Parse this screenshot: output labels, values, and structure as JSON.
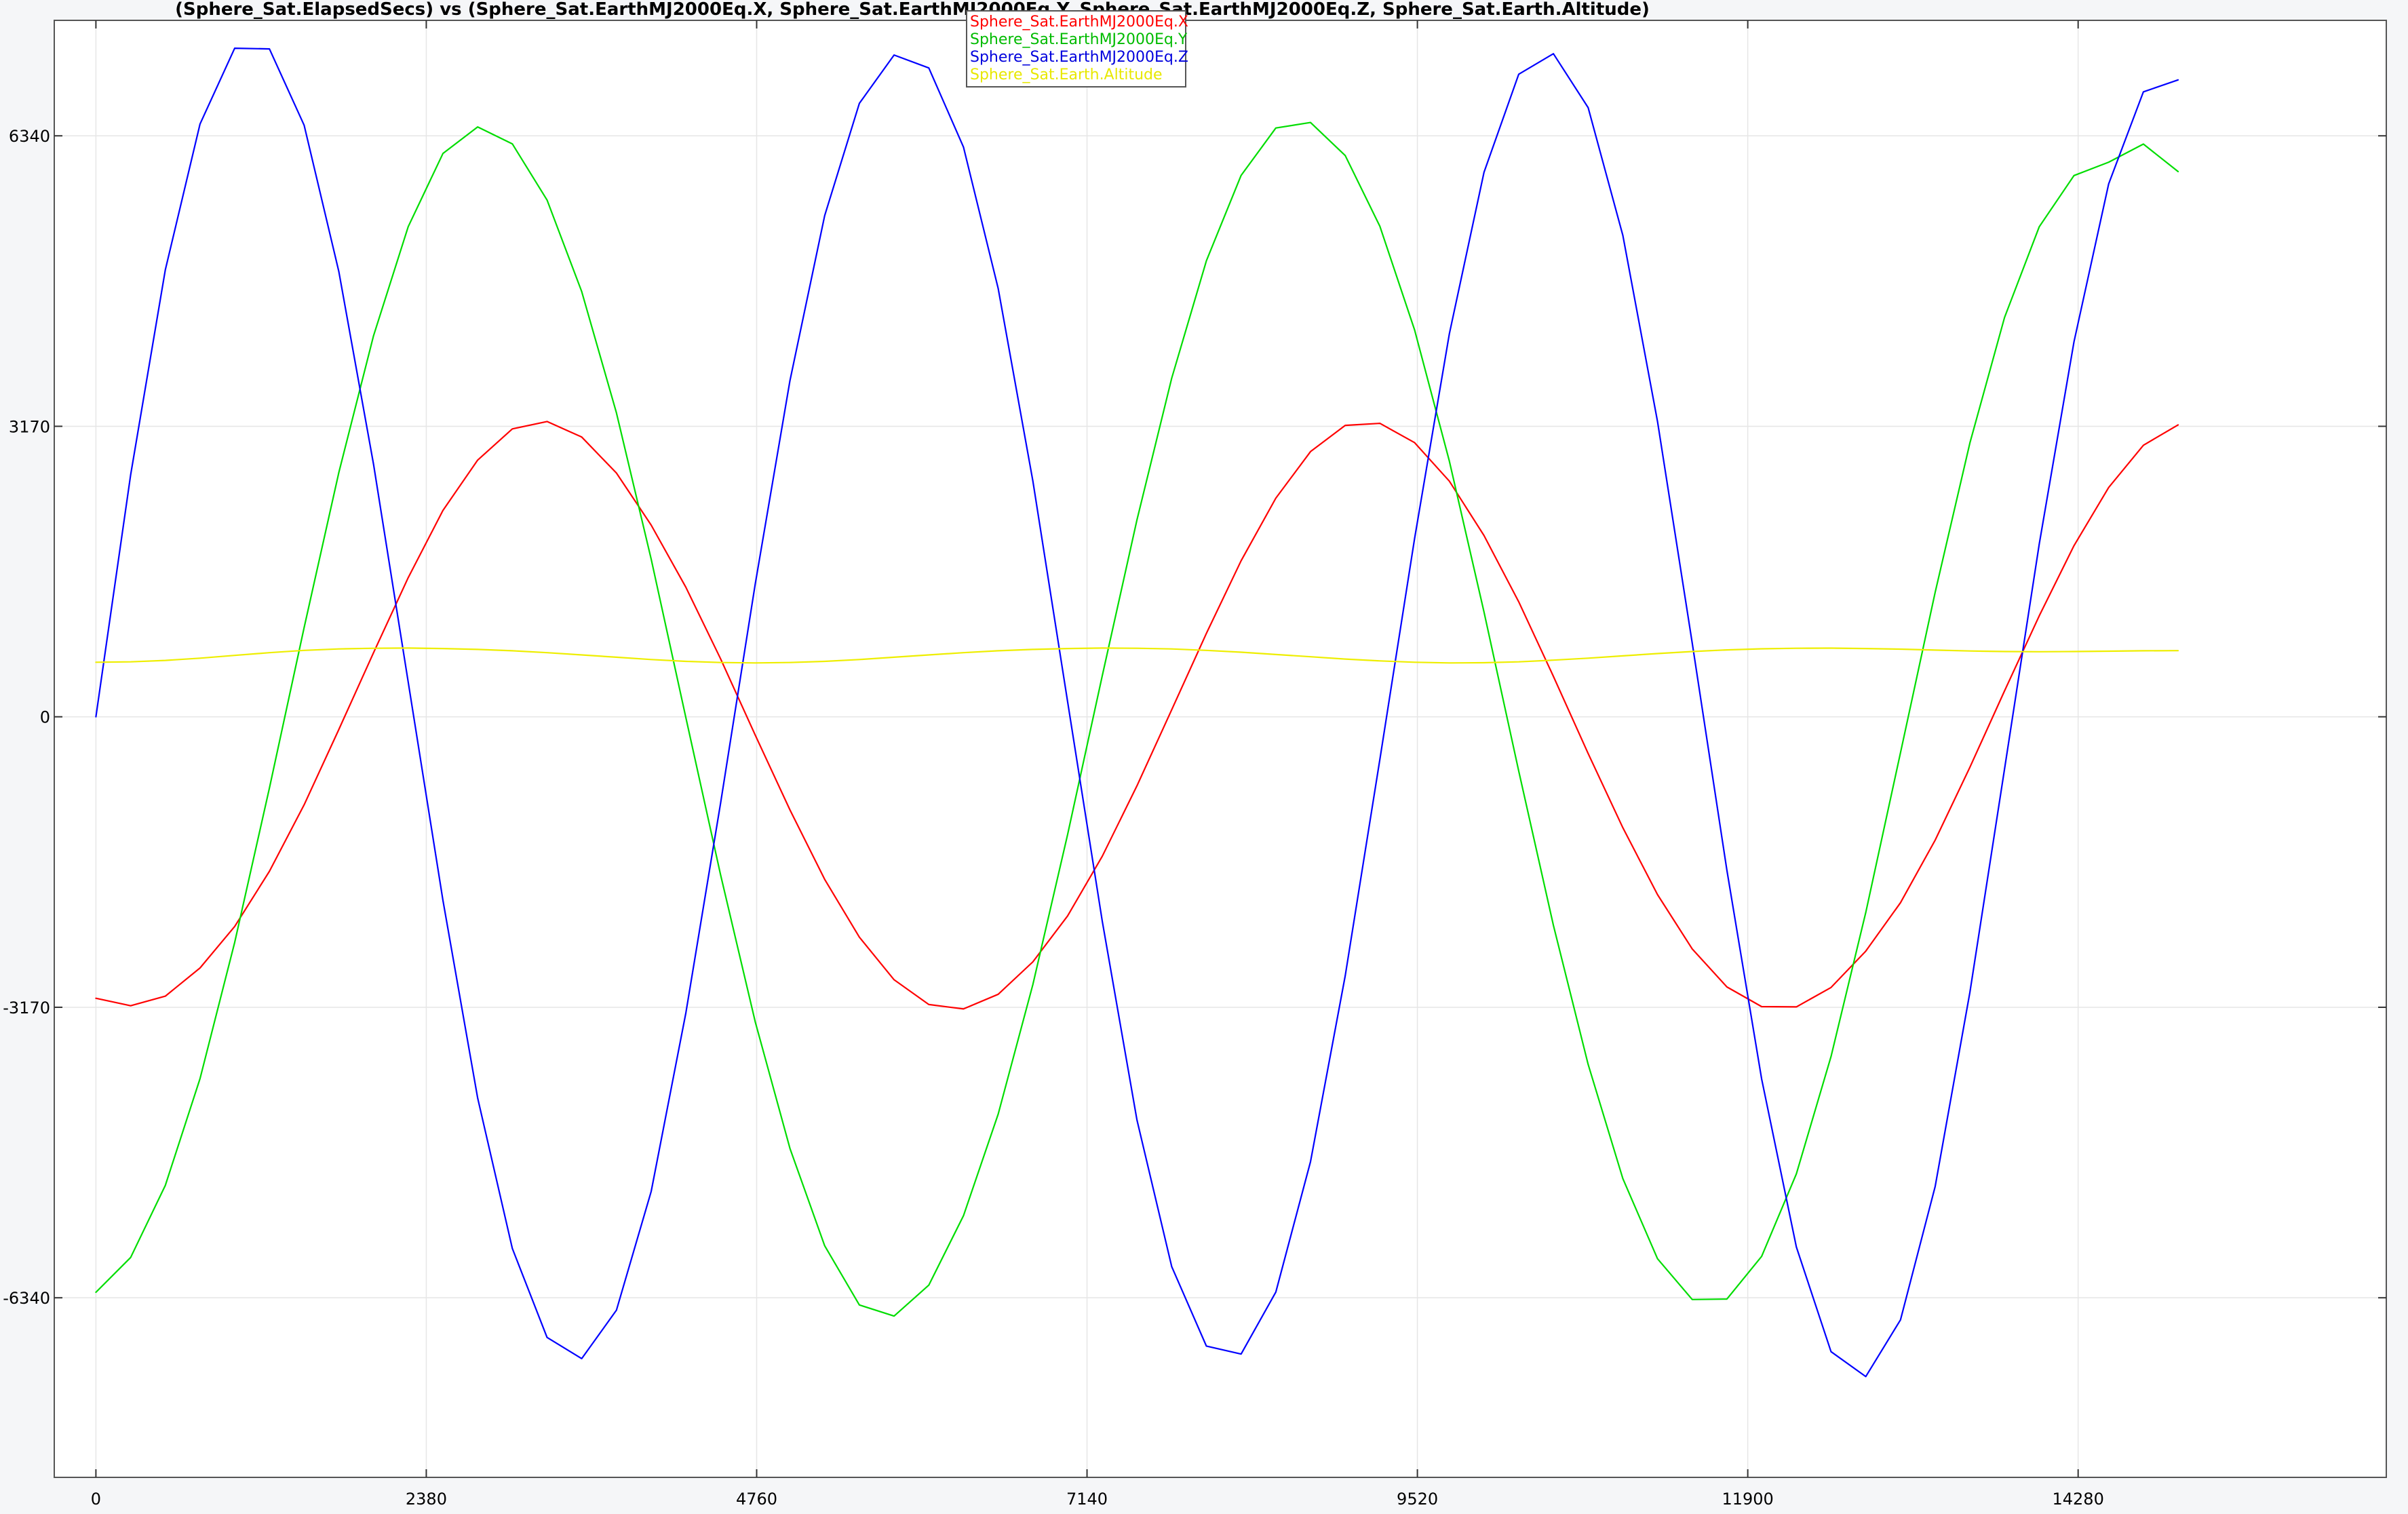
{
  "chart_data": {
    "type": "line",
    "title": "(Sphere_Sat.ElapsedSecs) vs (Sphere_Sat.EarthMJ2000Eq.X, Sphere_Sat.EarthMJ2000Eq.Y, Sphere_Sat.EarthMJ2000Eq.Z, Sphere_Sat.Earth.Altitude)",
    "xlabel": "",
    "ylabel": "",
    "xlim": [
      -300,
      16500
    ],
    "ylim": [
      -8300,
      7600
    ],
    "x_ticks": [
      "0",
      "2380",
      "4760",
      "7140",
      "9520",
      "11900",
      "14280"
    ],
    "x_tick_values": [
      0,
      2380,
      4760,
      7140,
      9520,
      11900,
      14280
    ],
    "y_ticks": [
      "6340",
      "3170",
      "0",
      "-3170",
      "-6340"
    ],
    "y_tick_values": [
      6340,
      3170,
      0,
      -3170,
      -6340
    ],
    "grid": true,
    "legend_position": "top-center",
    "x": [
      0,
      250,
      500,
      750,
      1000,
      1250,
      1500,
      1750,
      2000,
      2250,
      2500,
      2750,
      3000,
      3250,
      3500,
      3750,
      4000,
      4250,
      4500,
      4750,
      5000,
      5250,
      5500,
      5750,
      6000,
      6250,
      6500,
      6750,
      7000,
      7250,
      7500,
      7750,
      8000,
      8250,
      8500,
      8750,
      9000,
      9250,
      9500,
      9750,
      10000,
      10250,
      10500,
      10750,
      11000,
      11250,
      11500,
      11750,
      12000,
      12250,
      12500,
      12750,
      13000,
      13250,
      13500,
      13750,
      14000,
      14250,
      14500,
      14750,
      15000
    ],
    "series": [
      {
        "name": "Sphere_Sat.EarthMJ2000Eq.X",
        "color": "#ff0000",
        "values": [
          -3072,
          -3153,
          -3049,
          -2741,
          -2288,
          -1686,
          -960,
          -139,
          700,
          1518,
          2252,
          2801,
          3142,
          3222,
          3053,
          2660,
          2092,
          1414,
          633,
          -200,
          -1016,
          -1774,
          -2405,
          -2870,
          -3140,
          -3188,
          -3028,
          -2674,
          -2173,
          -1521,
          -753,
          77,
          910,
          1703,
          2386,
          2894,
          3180,
          3202,
          2991,
          2572,
          1978,
          1255,
          441,
          -400,
          -1211,
          -1941,
          -2534,
          -2948,
          -3163,
          -3166,
          -2954,
          -2557,
          -2029,
          -1346,
          -551,
          283,
          1102,
          1868,
          2502,
          2963,
          3185
        ]
      },
      {
        "name": "Sphere_Sat.EarthMJ2000Eq.Y",
        "color": "#00dd00",
        "values": [
          -6280,
          -5900,
          -5114,
          -3948,
          -2462,
          -777,
          975,
          2665,
          4159,
          5348,
          6147,
          6437,
          6252,
          5639,
          4640,
          3316,
          1721,
          -8,
          -1724,
          -3329,
          -4711,
          -5773,
          -6418,
          -6540,
          -6202,
          -5445,
          -4335,
          -2922,
          -1286,
          450,
          2150,
          3695,
          4976,
          5908,
          6425,
          6485,
          6125,
          5353,
          4221,
          2791,
          1144,
          -593,
          -2275,
          -3793,
          -5040,
          -5914,
          -6359,
          -6354,
          -5888,
          -4988,
          -3708,
          -2136,
          -392,
          1358,
          2988,
          4358,
          5348,
          5906,
          6052,
          6250,
          5950
        ]
      },
      {
        "name": "Sphere_Sat.EarthMJ2000Eq.Z",
        "color": "#0000ff",
        "values": [
          0,
          2640,
          4877,
          6469,
          7296,
          7288,
          6455,
          4860,
          2755,
          379,
          -2003,
          -4161,
          -5802,
          -6773,
          -7004,
          -6475,
          -5180,
          -3233,
          -944,
          1449,
          3669,
          5470,
          6694,
          7222,
          7080,
          6217,
          4673,
          2573,
          166,
          -2234,
          -4401,
          -6000,
          -6867,
          -6954,
          -6278,
          -4856,
          -2826,
          -464,
          1947,
          4179,
          5942,
          7012,
          7236,
          6648,
          5253,
          3222,
          803,
          -1676,
          -3953,
          -5786,
          -6928,
          -7200,
          -6581,
          -5127,
          -3008,
          -570,
          1887,
          4093,
          5815,
          6820,
          6950
        ]
      },
      {
        "name": "Sphere_Sat.Earth.Altitude",
        "color": "#eeee00",
        "values": [
          595,
          600,
          615,
          640,
          670,
          700,
          725,
          740,
          748,
          750,
          745,
          735,
          720,
          700,
          675,
          650,
          625,
          605,
          592,
          588,
          592,
          605,
          625,
          650,
          675,
          700,
          720,
          735,
          745,
          750,
          748,
          740,
          725,
          705,
          680,
          655,
          630,
          610,
          595,
          588,
          590,
          600,
          618,
          640,
          665,
          690,
          712,
          730,
          742,
          748,
          749,
          745,
          738,
          728,
          718,
          712,
          710,
          712,
          716,
          720,
          722
        ]
      }
    ]
  }
}
